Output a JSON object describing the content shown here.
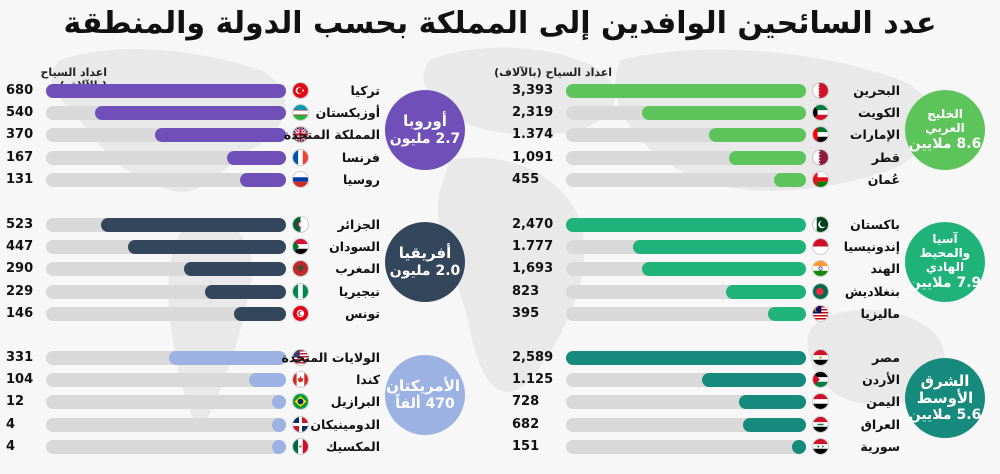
{
  "title": "عدد السائحين الوافدين إلى المملكة بحسب الدولة والمنطقة",
  "unit_label": "اعداد السياح (بالآلاف)",
  "colors": {
    "gulf": "#5cc45a",
    "asia": "#1fb37a",
    "middle_east": "#168a7c",
    "europe": "#7050b8",
    "africa": "#34465c",
    "americas": "#9cb2e2",
    "track": "#d9d9d9"
  },
  "chart_data": [
    {
      "type": "bar",
      "region": "الخليج العربي",
      "region_total": "8.6 ملايين",
      "color": "#5cc45a",
      "unit": "اعداد السياح (بالآلاف)",
      "max": 3393,
      "categories": [
        "البحرين",
        "الكويت",
        "الإمارات",
        "قطر",
        "عُمان"
      ],
      "values": [
        3393,
        2319,
        1374,
        1091,
        455
      ],
      "labels": [
        "3,393",
        "2,319",
        "1.374",
        "1,091",
        "455"
      ],
      "flags": [
        "bahrain-flag-icon",
        "kuwait-flag-icon",
        "uae-flag-icon",
        "qatar-flag-icon",
        "oman-flag-icon"
      ]
    },
    {
      "type": "bar",
      "region": "آسيا والمحيط الهادي",
      "region_total": "7.9 ملايين",
      "color": "#1fb37a",
      "unit": "",
      "max": 2470,
      "categories": [
        "باكستان",
        "إندونيسيا",
        "الهند",
        "بنغلاديش",
        "ماليزيا"
      ],
      "values": [
        2470,
        1777,
        1693,
        823,
        395
      ],
      "labels": [
        "2,470",
        "1.777",
        "1,693",
        "823",
        "395"
      ],
      "flags": [
        "pakistan-flag-icon",
        "indonesia-flag-icon",
        "india-flag-icon",
        "bangladesh-flag-icon",
        "malaysia-flag-icon"
      ]
    },
    {
      "type": "bar",
      "region": "الشرق الأوسط",
      "region_total": "5.6 ملايين",
      "color": "#168a7c",
      "unit": "",
      "max": 2589,
      "categories": [
        "مصر",
        "الأردن",
        "اليمن",
        "العراق",
        "سورية"
      ],
      "values": [
        2589,
        1125,
        728,
        682,
        151
      ],
      "labels": [
        "2,589",
        "1.125",
        "728",
        "682",
        "151"
      ],
      "flags": [
        "egypt-flag-icon",
        "jordan-flag-icon",
        "yemen-flag-icon",
        "iraq-flag-icon",
        "syria-flag-icon"
      ]
    },
    {
      "type": "bar",
      "region": "أوروبا",
      "region_total": "2.7 مليون",
      "color": "#7050b8",
      "unit": "اعداد السياح (بالآلاف)",
      "max": 680,
      "categories": [
        "تركيا",
        "أوزبكستان",
        "المملكة المتحدة",
        "فرنسا",
        "روسيا"
      ],
      "values": [
        680,
        540,
        370,
        167,
        131
      ],
      "labels": [
        "680",
        "540",
        "370",
        "167",
        "131"
      ],
      "flags": [
        "turkey-flag-icon",
        "uzbekistan-flag-icon",
        "uk-flag-icon",
        "france-flag-icon",
        "russia-flag-icon"
      ]
    },
    {
      "type": "bar",
      "region": "أفريقيا",
      "region_total": "2.0 مليون",
      "color": "#34465c",
      "unit": "",
      "max": 680,
      "categories": [
        "الجزائر",
        "السودان",
        "المغرب",
        "نيجيريا",
        "تونس"
      ],
      "values": [
        523,
        447,
        290,
        229,
        146
      ],
      "labels": [
        "523",
        "447",
        "290",
        "229",
        "146"
      ],
      "flags": [
        "algeria-flag-icon",
        "sudan-flag-icon",
        "morocco-flag-icon",
        "nigeria-flag-icon",
        "tunisia-flag-icon"
      ]
    },
    {
      "type": "bar",
      "region": "الأمريكتان",
      "region_total": "470 ألفاً",
      "color": "#9cb2e2",
      "unit": "",
      "max": 680,
      "categories": [
        "الولايات المتحدة",
        "كندا",
        "البرازيل",
        "الدومينيكان",
        "المكسيك"
      ],
      "values": [
        331,
        104,
        12,
        4,
        4
      ],
      "labels": [
        "331",
        "104",
        "12",
        "4",
        "4"
      ],
      "flags": [
        "usa-flag-icon",
        "canada-flag-icon",
        "brazil-flag-icon",
        "dominican-flag-icon",
        "mexico-flag-icon"
      ]
    }
  ]
}
